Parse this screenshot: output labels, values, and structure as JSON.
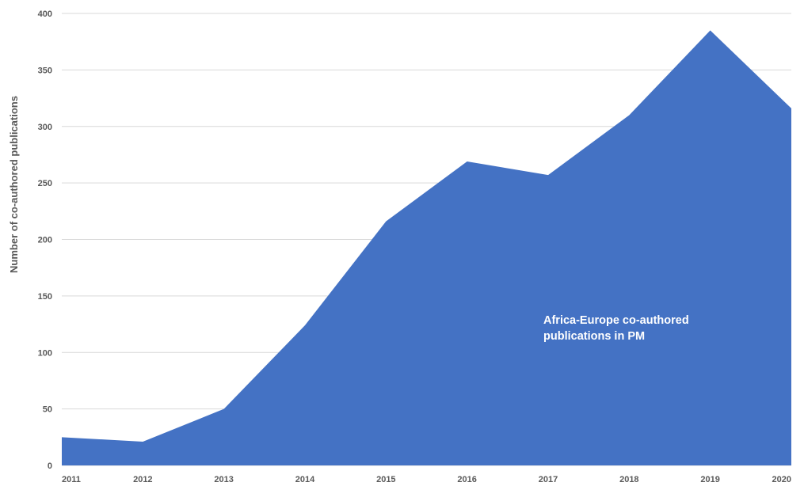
{
  "chart_data": {
    "type": "area",
    "x": [
      "2011",
      "2012",
      "2013",
      "2014",
      "2015",
      "2016",
      "2017",
      "2018",
      "2019",
      "2020"
    ],
    "series": [
      {
        "name": "Africa-Europe co-authored publications in PM",
        "values": [
          25,
          21,
          50,
          124,
          216,
          269,
          257,
          310,
          385,
          316
        ],
        "color": "#4472C4"
      }
    ],
    "ylabel": "Number of co-authored publications",
    "xlabel": "",
    "ylim": [
      0,
      400
    ],
    "yticks": [
      0,
      50,
      100,
      150,
      200,
      250,
      300,
      350,
      400
    ],
    "grid": true,
    "annotation": {
      "line1": "Africa-Europe co-authored",
      "line2": "publications in PM"
    }
  }
}
